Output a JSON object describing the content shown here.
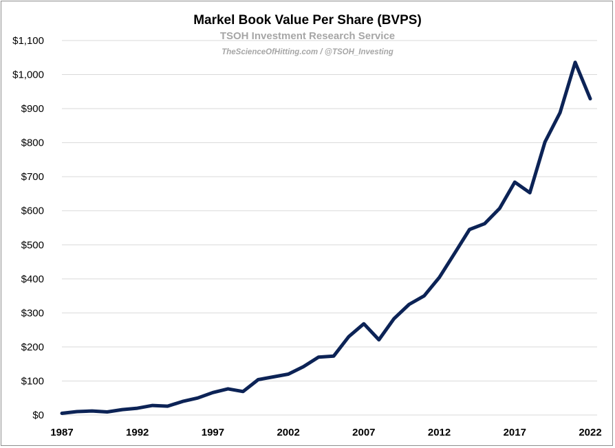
{
  "chart_data": {
    "type": "line",
    "title": "Markel Book Value Per Share (BVPS)",
    "subtitle": "TSOH Investment Research Service",
    "subtitle2": "TheScienceOfHitting.com / @TSOH_Investing",
    "xlabel": "",
    "ylabel": "",
    "ylim": [
      0,
      1100
    ],
    "xlim": [
      1987,
      2022
    ],
    "grid": true,
    "legend": "none",
    "x_tick_labels": [
      "1987",
      "1992",
      "1997",
      "2002",
      "2007",
      "2012",
      "2017",
      "2022"
    ],
    "y_tick_labels": [
      "$0",
      "$100",
      "$200",
      "$300",
      "$400",
      "$500",
      "$600",
      "$700",
      "$800",
      "$900",
      "$1,000",
      "$1,100"
    ],
    "series": [
      {
        "color": "#0c2356",
        "x": [
          1987,
          1988,
          1989,
          1990,
          1991,
          1992,
          1993,
          1994,
          1995,
          1996,
          1997,
          1998,
          1999,
          2000,
          2001,
          2002,
          2003,
          2004,
          2005,
          2006,
          2007,
          2008,
          2009,
          2010,
          2011,
          2012,
          2013,
          2014,
          2015,
          2016,
          2017,
          2018,
          2019,
          2020,
          2021,
          2022
        ],
        "values": [
          5,
          10,
          12,
          9,
          16,
          20,
          28,
          26,
          40,
          50,
          66,
          77,
          69,
          104,
          112,
          120,
          142,
          170,
          173,
          230,
          268,
          221,
          283,
          325,
          350,
          404,
          474,
          545,
          562,
          607,
          684,
          653,
          802,
          888,
          1036,
          929
        ]
      }
    ]
  }
}
